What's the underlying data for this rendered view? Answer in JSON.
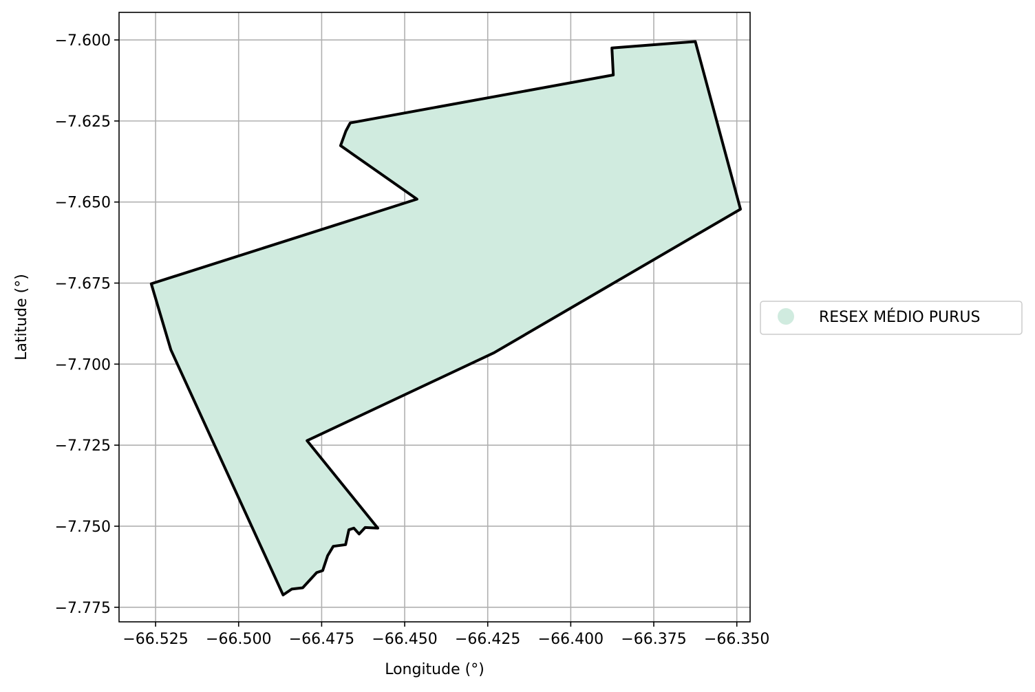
{
  "chart_data": {
    "type": "map",
    "xlabel": "Longitude (°)",
    "ylabel": "Latitude (°)",
    "xlim": [
      -66.536,
      -66.346
    ],
    "ylim": [
      -7.7795,
      -7.5915
    ],
    "grid": true,
    "x_ticks": [
      -66.525,
      -66.5,
      -66.475,
      -66.45,
      -66.425,
      -66.4,
      -66.375,
      -66.35
    ],
    "x_tick_labels": [
      "−66.525",
      "−66.500",
      "−66.475",
      "−66.450",
      "−66.425",
      "−66.400",
      "−66.375",
      "−66.350"
    ],
    "y_ticks": [
      -7.6,
      -7.625,
      -7.65,
      -7.675,
      -7.7,
      -7.725,
      -7.75,
      -7.775
    ],
    "y_tick_labels": [
      "−7.600",
      "−7.625",
      "−7.650",
      "−7.675",
      "−7.700",
      "−7.725",
      "−7.750",
      "−7.775"
    ],
    "legend": {
      "placement": "center-right outside",
      "entries": [
        {
          "label": "RESEX MÉDIO PURUS",
          "color": "#d0ebdf"
        }
      ]
    },
    "regions": [
      {
        "name": "RESEX MÉDIO PURUS",
        "fill": "#d0ebdf",
        "edge": "#000000",
        "coordinates": [
          [
            -66.3625,
            -7.6005
          ],
          [
            -66.3489,
            -7.6522
          ],
          [
            -66.4231,
            -7.6965
          ],
          [
            -66.4794,
            -7.7236
          ],
          [
            -66.4581,
            -7.7506
          ],
          [
            -66.4619,
            -7.7504
          ],
          [
            -66.4637,
            -7.7524
          ],
          [
            -66.4653,
            -7.7506
          ],
          [
            -66.4668,
            -7.7511
          ],
          [
            -66.4678,
            -7.7557
          ],
          [
            -66.4715,
            -7.7562
          ],
          [
            -66.4732,
            -7.7591
          ],
          [
            -66.4747,
            -7.7637
          ],
          [
            -66.4765,
            -7.7643
          ],
          [
            -66.4807,
            -7.769
          ],
          [
            -66.484,
            -7.7694
          ],
          [
            -66.4866,
            -7.7712
          ],
          [
            -66.5204,
            -7.6956
          ],
          [
            -66.5263,
            -7.6752
          ],
          [
            -66.4463,
            -7.6491
          ],
          [
            -66.4693,
            -7.6326
          ],
          [
            -66.4677,
            -7.6281
          ],
          [
            -66.4664,
            -7.6256
          ],
          [
            -66.3872,
            -7.6108
          ],
          [
            -66.3876,
            -7.6025
          ]
        ]
      }
    ]
  }
}
